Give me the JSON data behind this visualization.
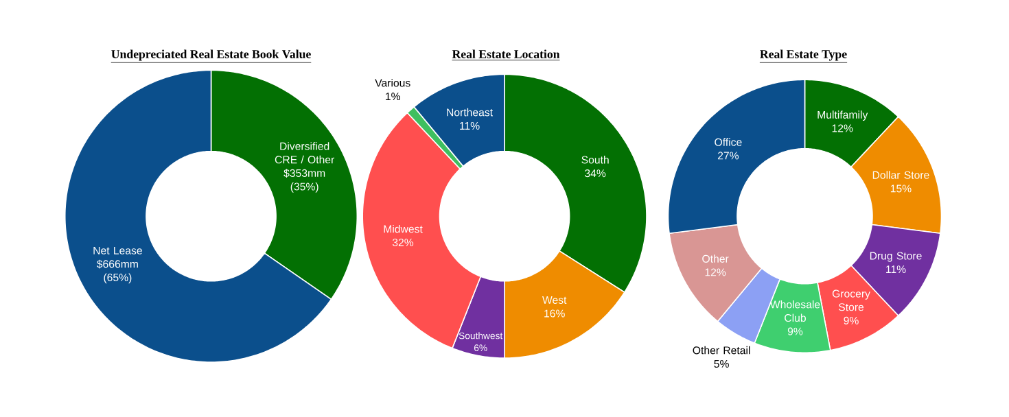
{
  "chart_data": [
    {
      "type": "donut",
      "title": "Undepreciated Real Estate Book Value",
      "categories": [
        "Diversified CRE / Other",
        "Net Lease"
      ],
      "values": [
        353,
        666
      ],
      "value_labels": [
        "$353mm (35%)",
        "$666mm (65%)"
      ],
      "colors": [
        "#037003",
        "#0b4f8c"
      ]
    },
    {
      "type": "donut",
      "title": "Real Estate Location",
      "categories": [
        "South",
        "West",
        "Southwest",
        "Midwest",
        "Various",
        "Northeast"
      ],
      "values": [
        34,
        16,
        6,
        32,
        1,
        11
      ],
      "value_labels": [
        "34%",
        "16%",
        "6%",
        "32%",
        "1%",
        "11%"
      ],
      "colors": [
        "#037003",
        "#ef8c00",
        "#7030a0",
        "#ff4f4f",
        "#3fbf5f",
        "#0b4f8c"
      ]
    },
    {
      "type": "donut",
      "title": "Real Estate Type",
      "categories": [
        "Multifamily",
        "Dollar Store",
        "Drug Store",
        "Grocery Store",
        "Wholesale Club",
        "Other Retail",
        "Other",
        "Office"
      ],
      "values": [
        12,
        15,
        11,
        9,
        9,
        5,
        12,
        27
      ],
      "value_labels": [
        "12%",
        "15%",
        "11%",
        "9%",
        "9%",
        "5%",
        "12%",
        "27%"
      ],
      "colors": [
        "#037003",
        "#ef8c00",
        "#7030a0",
        "#ff4f4f",
        "#3fcf6f",
        "#8ca0f4",
        "#d99694",
        "#0b4f8c"
      ]
    }
  ]
}
